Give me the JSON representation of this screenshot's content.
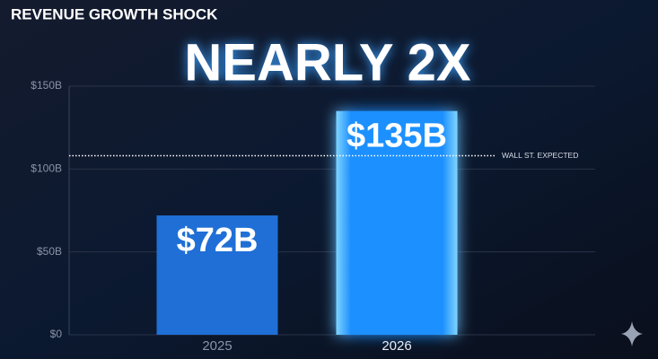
{
  "chart_data": {
    "type": "bar",
    "title": "REVENUE GROWTH SHOCK",
    "headline": "NEARLY 2X",
    "categories": [
      "2025",
      "2026"
    ],
    "values": [
      72,
      135
    ],
    "value_labels": [
      "$72B",
      "$135B"
    ],
    "colors": [
      "#1f6fd6",
      "#1e90ff"
    ],
    "ylim": [
      0,
      150
    ],
    "yticks": [
      {
        "value": 0,
        "label": "$0"
      },
      {
        "value": 50,
        "label": "$50B"
      },
      {
        "value": 100,
        "label": "$100B"
      },
      {
        "value": 150,
        "label": "$150B"
      }
    ],
    "grid": true,
    "reference_line": {
      "value": 108,
      "label": "WALL ST. EXPECTED"
    }
  }
}
